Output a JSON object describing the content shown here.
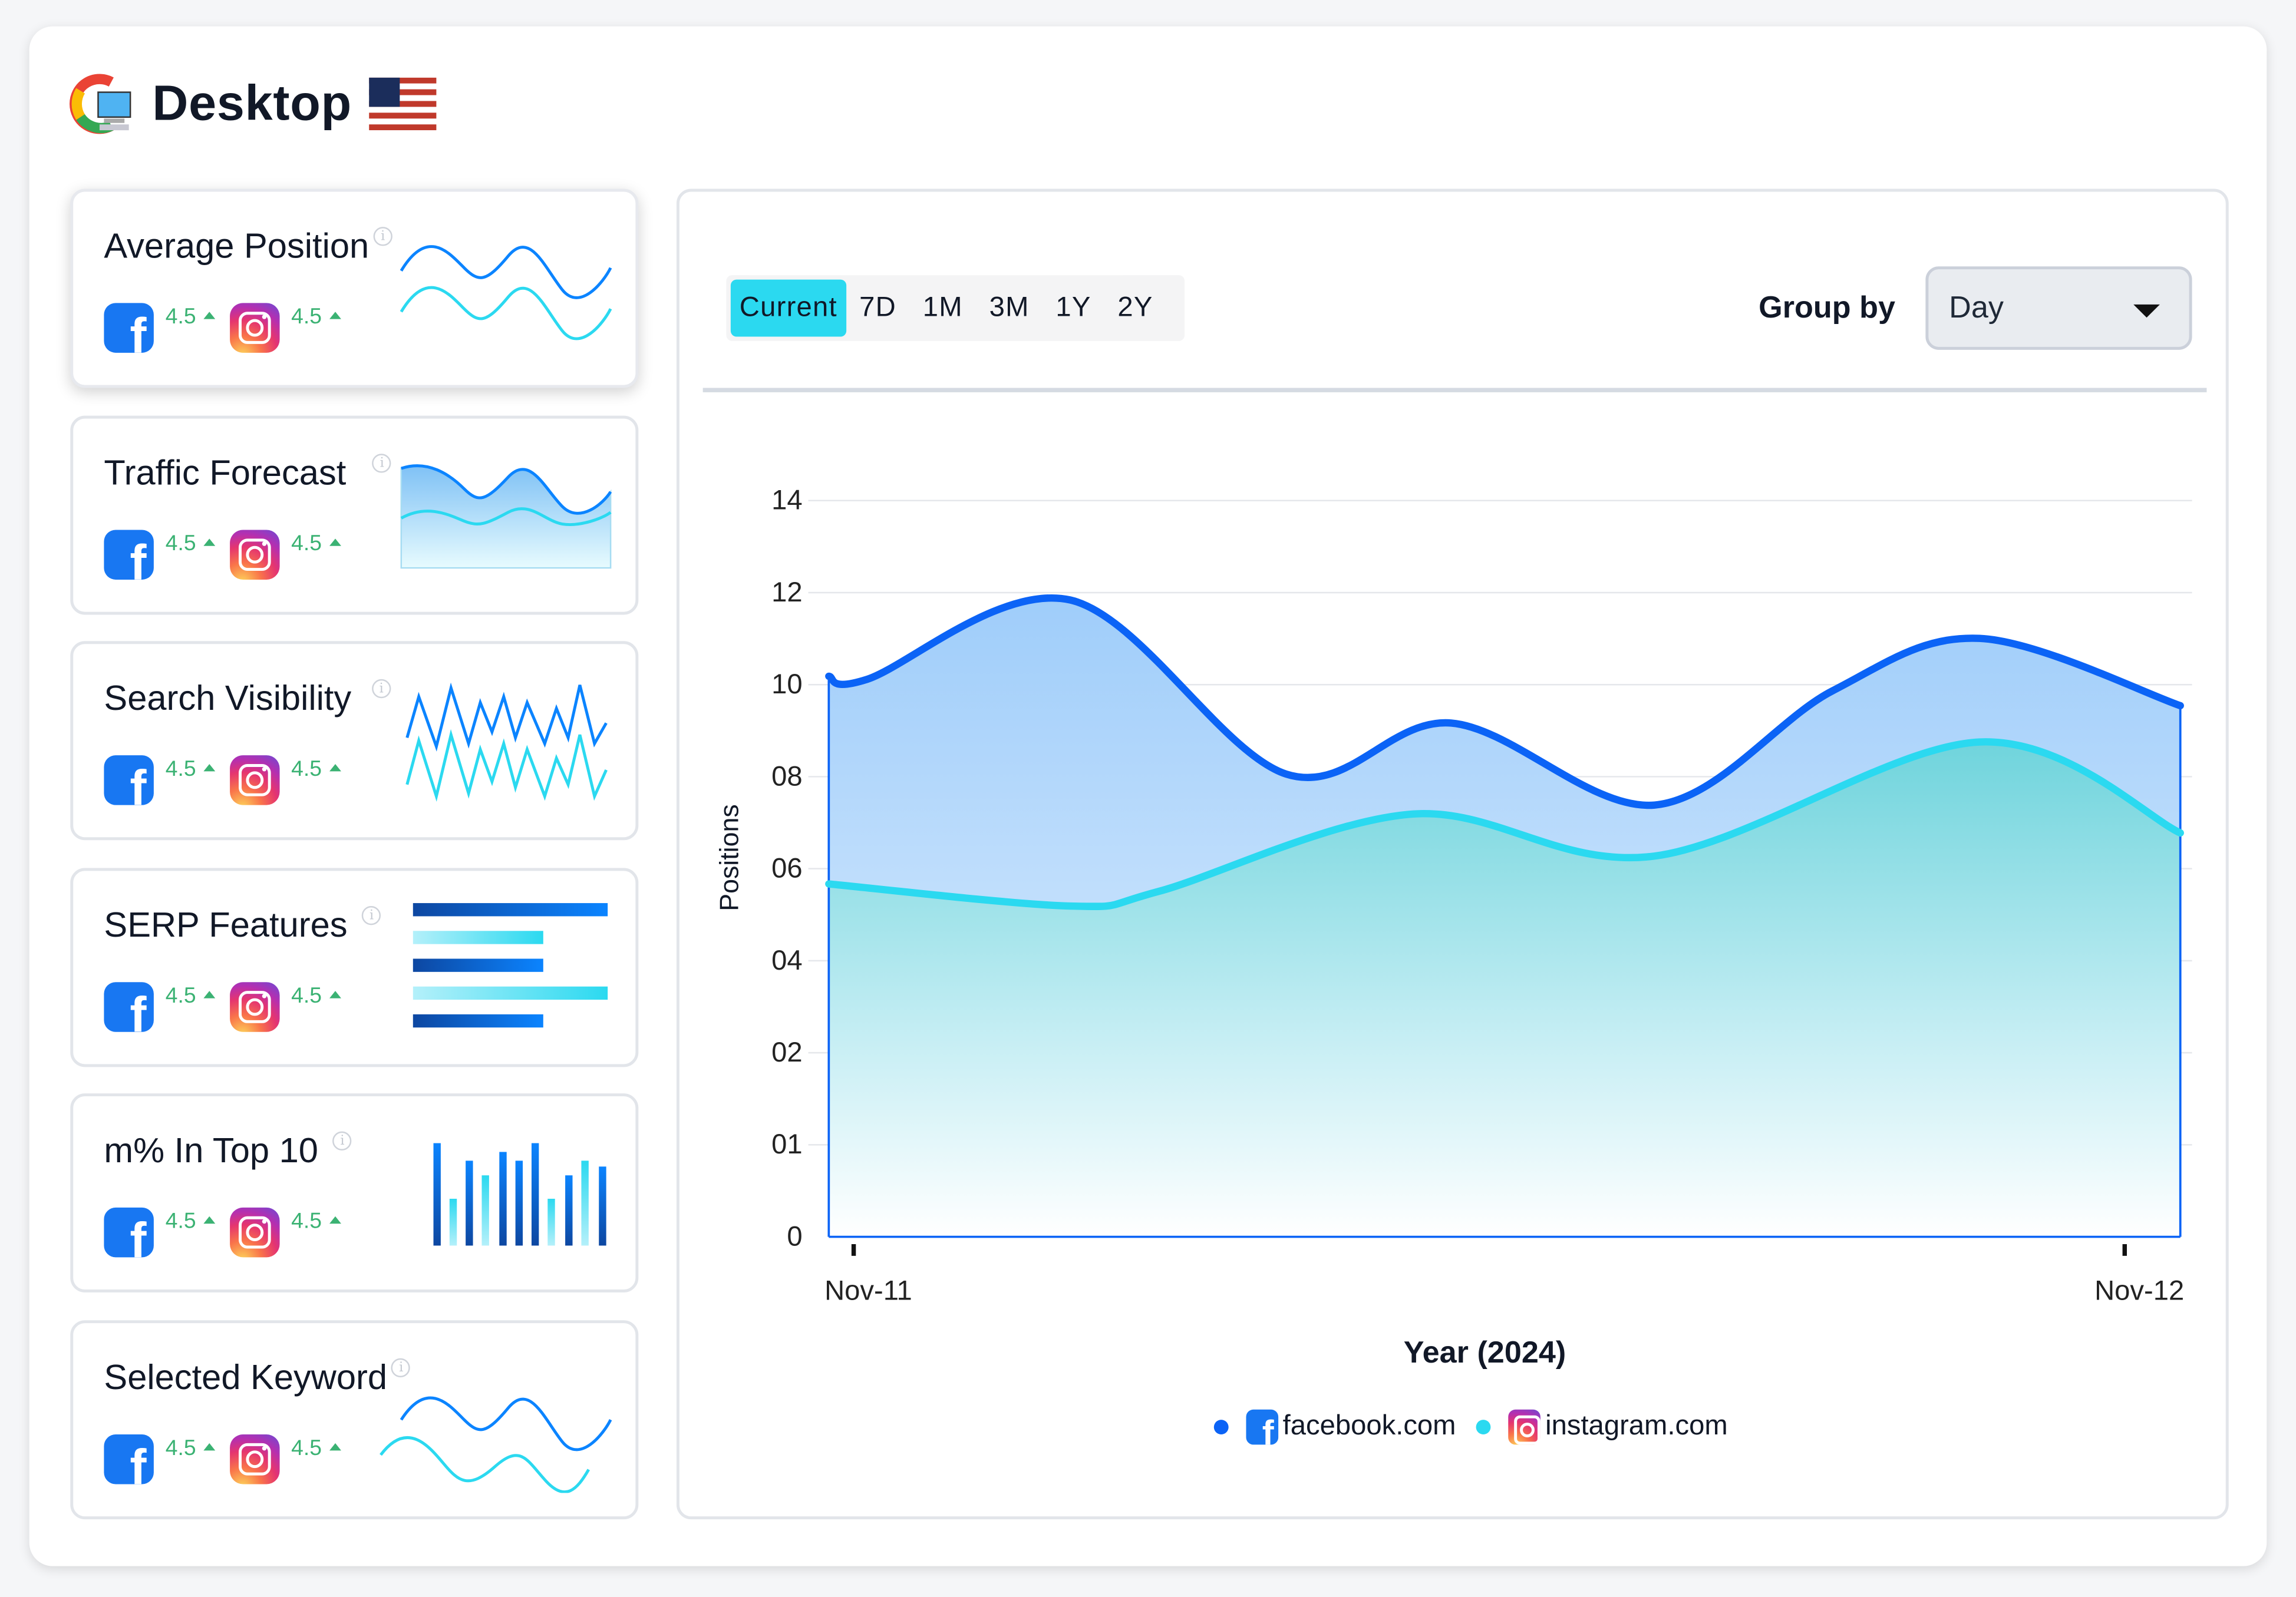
{
  "header": {
    "title": "Desktop",
    "search_engine_icon": "google-desktop-icon",
    "country_flag": "us-flag-icon"
  },
  "metrics": [
    {
      "title": "Average Position",
      "facebook_value": "4.5",
      "instagram_value": "4.5",
      "trend": "up",
      "sparkline": "line"
    },
    {
      "title": "Traffic Forecast",
      "facebook_value": "4.5",
      "instagram_value": "4.5",
      "trend": "up",
      "sparkline": "area"
    },
    {
      "title": "Search Visibility",
      "facebook_value": "4.5",
      "instagram_value": "4.5",
      "trend": "up",
      "sparkline": "zigzag"
    },
    {
      "title": "SERP Features",
      "facebook_value": "4.5",
      "instagram_value": "4.5",
      "trend": "up",
      "sparkline": "hbar"
    },
    {
      "title": "m% In Top 10",
      "facebook_value": "4.5",
      "instagram_value": "4.5",
      "trend": "up",
      "sparkline": "vbar"
    },
    {
      "title": "Selected Keyword",
      "facebook_value": "4.5",
      "instagram_value": "4.5",
      "trend": "up",
      "sparkline": "line"
    }
  ],
  "info_glyph": "i",
  "fb_glyph": "f",
  "toolbar": {
    "ranges": [
      "Current",
      "7D",
      "1M",
      "3M",
      "1Y",
      "2Y"
    ],
    "active_range": "Current",
    "group_by_label": "Group by",
    "group_by_value": "Day"
  },
  "colors": {
    "facebook": "#0b63f6",
    "instagram": "#2bd9f0",
    "accent": "#2bd9f0",
    "positive": "#3bb273"
  },
  "chart_data": {
    "type": "area",
    "xlabel": "Year (2024)",
    "ylabel": "Positions",
    "x_ticks": [
      {
        "x": 0,
        "label": "Nov-11"
      },
      {
        "x": 1,
        "label": "Nov-12"
      }
    ],
    "xlim": [
      -0.02,
      1.044
    ],
    "y_tick_labels": [
      "0",
      "01",
      "02",
      "04",
      "06",
      "08",
      "10",
      "12",
      "14"
    ],
    "ylim": [
      0,
      14
    ],
    "grid": true,
    "legend_position": "bottom",
    "series": [
      {
        "name": "facebook.com",
        "color": "#0b63f6",
        "x": [
          -0.02,
          0.01,
          0.17,
          0.34,
          0.47,
          0.63,
          0.77,
          0.886,
          1.044
        ],
        "y": [
          10.66,
          10.6,
          12.11,
          8.8,
          9.77,
          8.21,
          10.38,
          11.38,
          10.1
        ]
      },
      {
        "name": "instagram.com",
        "color": "#2bd9f0",
        "x": [
          -0.02,
          0.17,
          0.24,
          0.44,
          0.63,
          0.886,
          1.044
        ],
        "y": [
          6.71,
          6.29,
          6.57,
          8.04,
          7.24,
          9.41,
          7.68
        ]
      }
    ]
  }
}
